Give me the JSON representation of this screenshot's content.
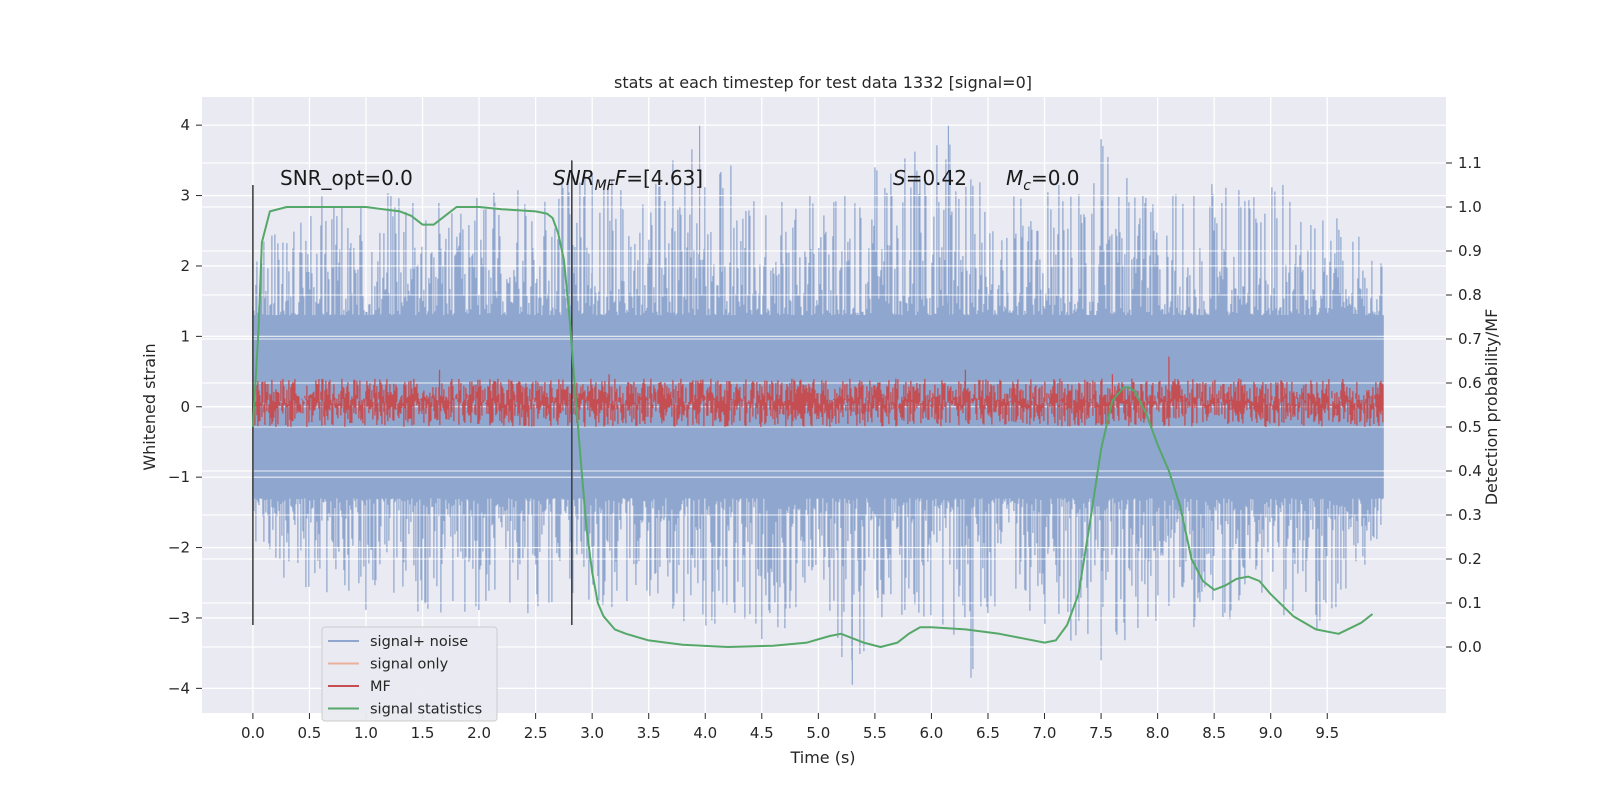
{
  "chart_data": {
    "type": "line",
    "title": "stats at each timestep for test data 1332 [signal=0]",
    "xlabel": "Time (s)",
    "ylabel": "Whitened strain",
    "y2label": "Detection probability/MF",
    "xlim": [
      -0.45,
      10.55
    ],
    "ylim": [
      -4.35,
      4.4
    ],
    "y2lim": [
      -0.15,
      1.25
    ],
    "x_ticks": [
      "0.0",
      "0.5",
      "1.0",
      "1.5",
      "2.0",
      "2.5",
      "3.0",
      "3.5",
      "4.0",
      "4.5",
      "5.0",
      "5.5",
      "6.0",
      "6.5",
      "7.0",
      "7.5",
      "8.0",
      "8.5",
      "9.0",
      "9.5"
    ],
    "y_ticks": [
      "4",
      "3",
      "2",
      "1",
      "0",
      "−1",
      "−2",
      "−3",
      "−4"
    ],
    "y2_ticks": [
      "1.1",
      "1.0",
      "0.9",
      "0.8",
      "0.7",
      "0.6",
      "0.5",
      "0.4",
      "0.3",
      "0.2",
      "0.1",
      "0.0"
    ],
    "grid": true,
    "background": "#eaeaf2",
    "annotations": {
      "snr_opt": "SNR_opt=0.0",
      "snr_mf_base": "SNR",
      "snr_mf_sub": "MF",
      "snr_mf_value": "=[4.63]",
      "s_sym": "S",
      "s_value": "=0.42",
      "mc_base": "M",
      "mc_sub": "c",
      "mc_value": "=0.0"
    },
    "vertical_markers": [
      {
        "x": 0.0,
        "y_range": [
          -3.1,
          3.15
        ]
      },
      {
        "x": 2.82,
        "y_range": [
          -3.1,
          3.5
        ]
      }
    ],
    "legend": {
      "position": "lower-left",
      "entries": [
        {
          "label": "signal+ noise",
          "color": "#8fa6cf"
        },
        {
          "label": "signal only",
          "color": "#ebb09a"
        },
        {
          "label": "MF",
          "color": "#c44e52"
        },
        {
          "label": "signal statistics",
          "color": "#55a868"
        }
      ]
    },
    "series": [
      {
        "name": "signal+ noise",
        "axis": "left",
        "color": "#8fa6cf",
        "x_range": [
          0.0,
          10.0
        ],
        "baseline": 0.0,
        "positive_envelope": [
          [
            0.0,
            2.4
          ],
          [
            0.5,
            3.1
          ],
          [
            1.0,
            3.0
          ],
          [
            1.5,
            3.2
          ],
          [
            2.0,
            3.1
          ],
          [
            2.5,
            3.2
          ],
          [
            3.0,
            3.3
          ],
          [
            3.5,
            3.2
          ],
          [
            3.95,
            4.0
          ],
          [
            4.5,
            3.0
          ],
          [
            5.0,
            3.1
          ],
          [
            5.5,
            3.4
          ],
          [
            6.15,
            4.0
          ],
          [
            6.5,
            3.1
          ],
          [
            7.0,
            3.1
          ],
          [
            7.5,
            3.8
          ],
          [
            8.0,
            3.1
          ],
          [
            8.5,
            3.2
          ],
          [
            9.0,
            3.2
          ],
          [
            9.5,
            3.0
          ],
          [
            10.0,
            2.0
          ]
        ],
        "negative_envelope": [
          [
            0.0,
            -2.0
          ],
          [
            0.5,
            -2.8
          ],
          [
            1.0,
            -2.9
          ],
          [
            1.5,
            -3.0
          ],
          [
            2.0,
            -2.9
          ],
          [
            2.5,
            -3.0
          ],
          [
            3.0,
            -2.8
          ],
          [
            3.5,
            -3.0
          ],
          [
            4.0,
            -3.2
          ],
          [
            4.5,
            -3.3
          ],
          [
            5.0,
            -3.0
          ],
          [
            5.3,
            -3.95
          ],
          [
            5.5,
            -3.1
          ],
          [
            6.0,
            -3.0
          ],
          [
            6.35,
            -3.85
          ],
          [
            6.5,
            -3.0
          ],
          [
            7.0,
            -3.1
          ],
          [
            7.5,
            -3.6
          ],
          [
            8.0,
            -3.2
          ],
          [
            8.5,
            -3.1
          ],
          [
            9.0,
            -3.0
          ],
          [
            9.5,
            -3.2
          ],
          [
            10.0,
            -1.8
          ]
        ]
      },
      {
        "name": "MF",
        "axis": "right",
        "color": "#c44e52",
        "x_range": [
          0.0,
          10.0
        ],
        "band": [
          0.5,
          0.61
        ],
        "peaks": [
          [
            1.65,
            0.63
          ],
          [
            3.15,
            0.62
          ],
          [
            6.3,
            0.63
          ],
          [
            7.6,
            0.62
          ],
          [
            8.1,
            0.66
          ]
        ]
      },
      {
        "name": "signal statistics",
        "axis": "right",
        "color": "#55a868",
        "x": [
          0.0,
          0.05,
          0.08,
          0.15,
          0.3,
          0.6,
          1.0,
          1.3,
          1.4,
          1.5,
          1.6,
          1.7,
          1.8,
          2.0,
          2.2,
          2.5,
          2.6,
          2.65,
          2.7,
          2.75,
          2.8,
          2.85,
          2.9,
          2.95,
          3.0,
          3.05,
          3.1,
          3.2,
          3.3,
          3.5,
          3.8,
          4.2,
          4.6,
          4.9,
          5.1,
          5.2,
          5.3,
          5.4,
          5.55,
          5.7,
          5.8,
          5.9,
          6.0,
          6.3,
          6.6,
          6.8,
          7.0,
          7.1,
          7.2,
          7.3,
          7.4,
          7.5,
          7.6,
          7.7,
          7.75,
          7.8,
          7.9,
          8.0,
          8.1,
          8.2,
          8.3,
          8.4,
          8.5,
          8.6,
          8.7,
          8.8,
          8.9,
          9.0,
          9.2,
          9.4,
          9.6,
          9.8,
          9.9
        ],
        "y": [
          0.5,
          0.72,
          0.92,
          0.99,
          1.0,
          1.0,
          1.0,
          0.99,
          0.98,
          0.96,
          0.96,
          0.98,
          1.0,
          1.0,
          0.995,
          0.99,
          0.985,
          0.975,
          0.94,
          0.88,
          0.75,
          0.58,
          0.42,
          0.27,
          0.17,
          0.1,
          0.07,
          0.04,
          0.03,
          0.015,
          0.005,
          0.0,
          0.003,
          0.01,
          0.025,
          0.03,
          0.02,
          0.01,
          0.0,
          0.01,
          0.03,
          0.045,
          0.045,
          0.04,
          0.03,
          0.02,
          0.01,
          0.015,
          0.05,
          0.12,
          0.28,
          0.45,
          0.56,
          0.59,
          0.59,
          0.58,
          0.53,
          0.46,
          0.4,
          0.32,
          0.2,
          0.15,
          0.13,
          0.14,
          0.155,
          0.16,
          0.15,
          0.12,
          0.07,
          0.04,
          0.03,
          0.055,
          0.075
        ]
      }
    ]
  }
}
